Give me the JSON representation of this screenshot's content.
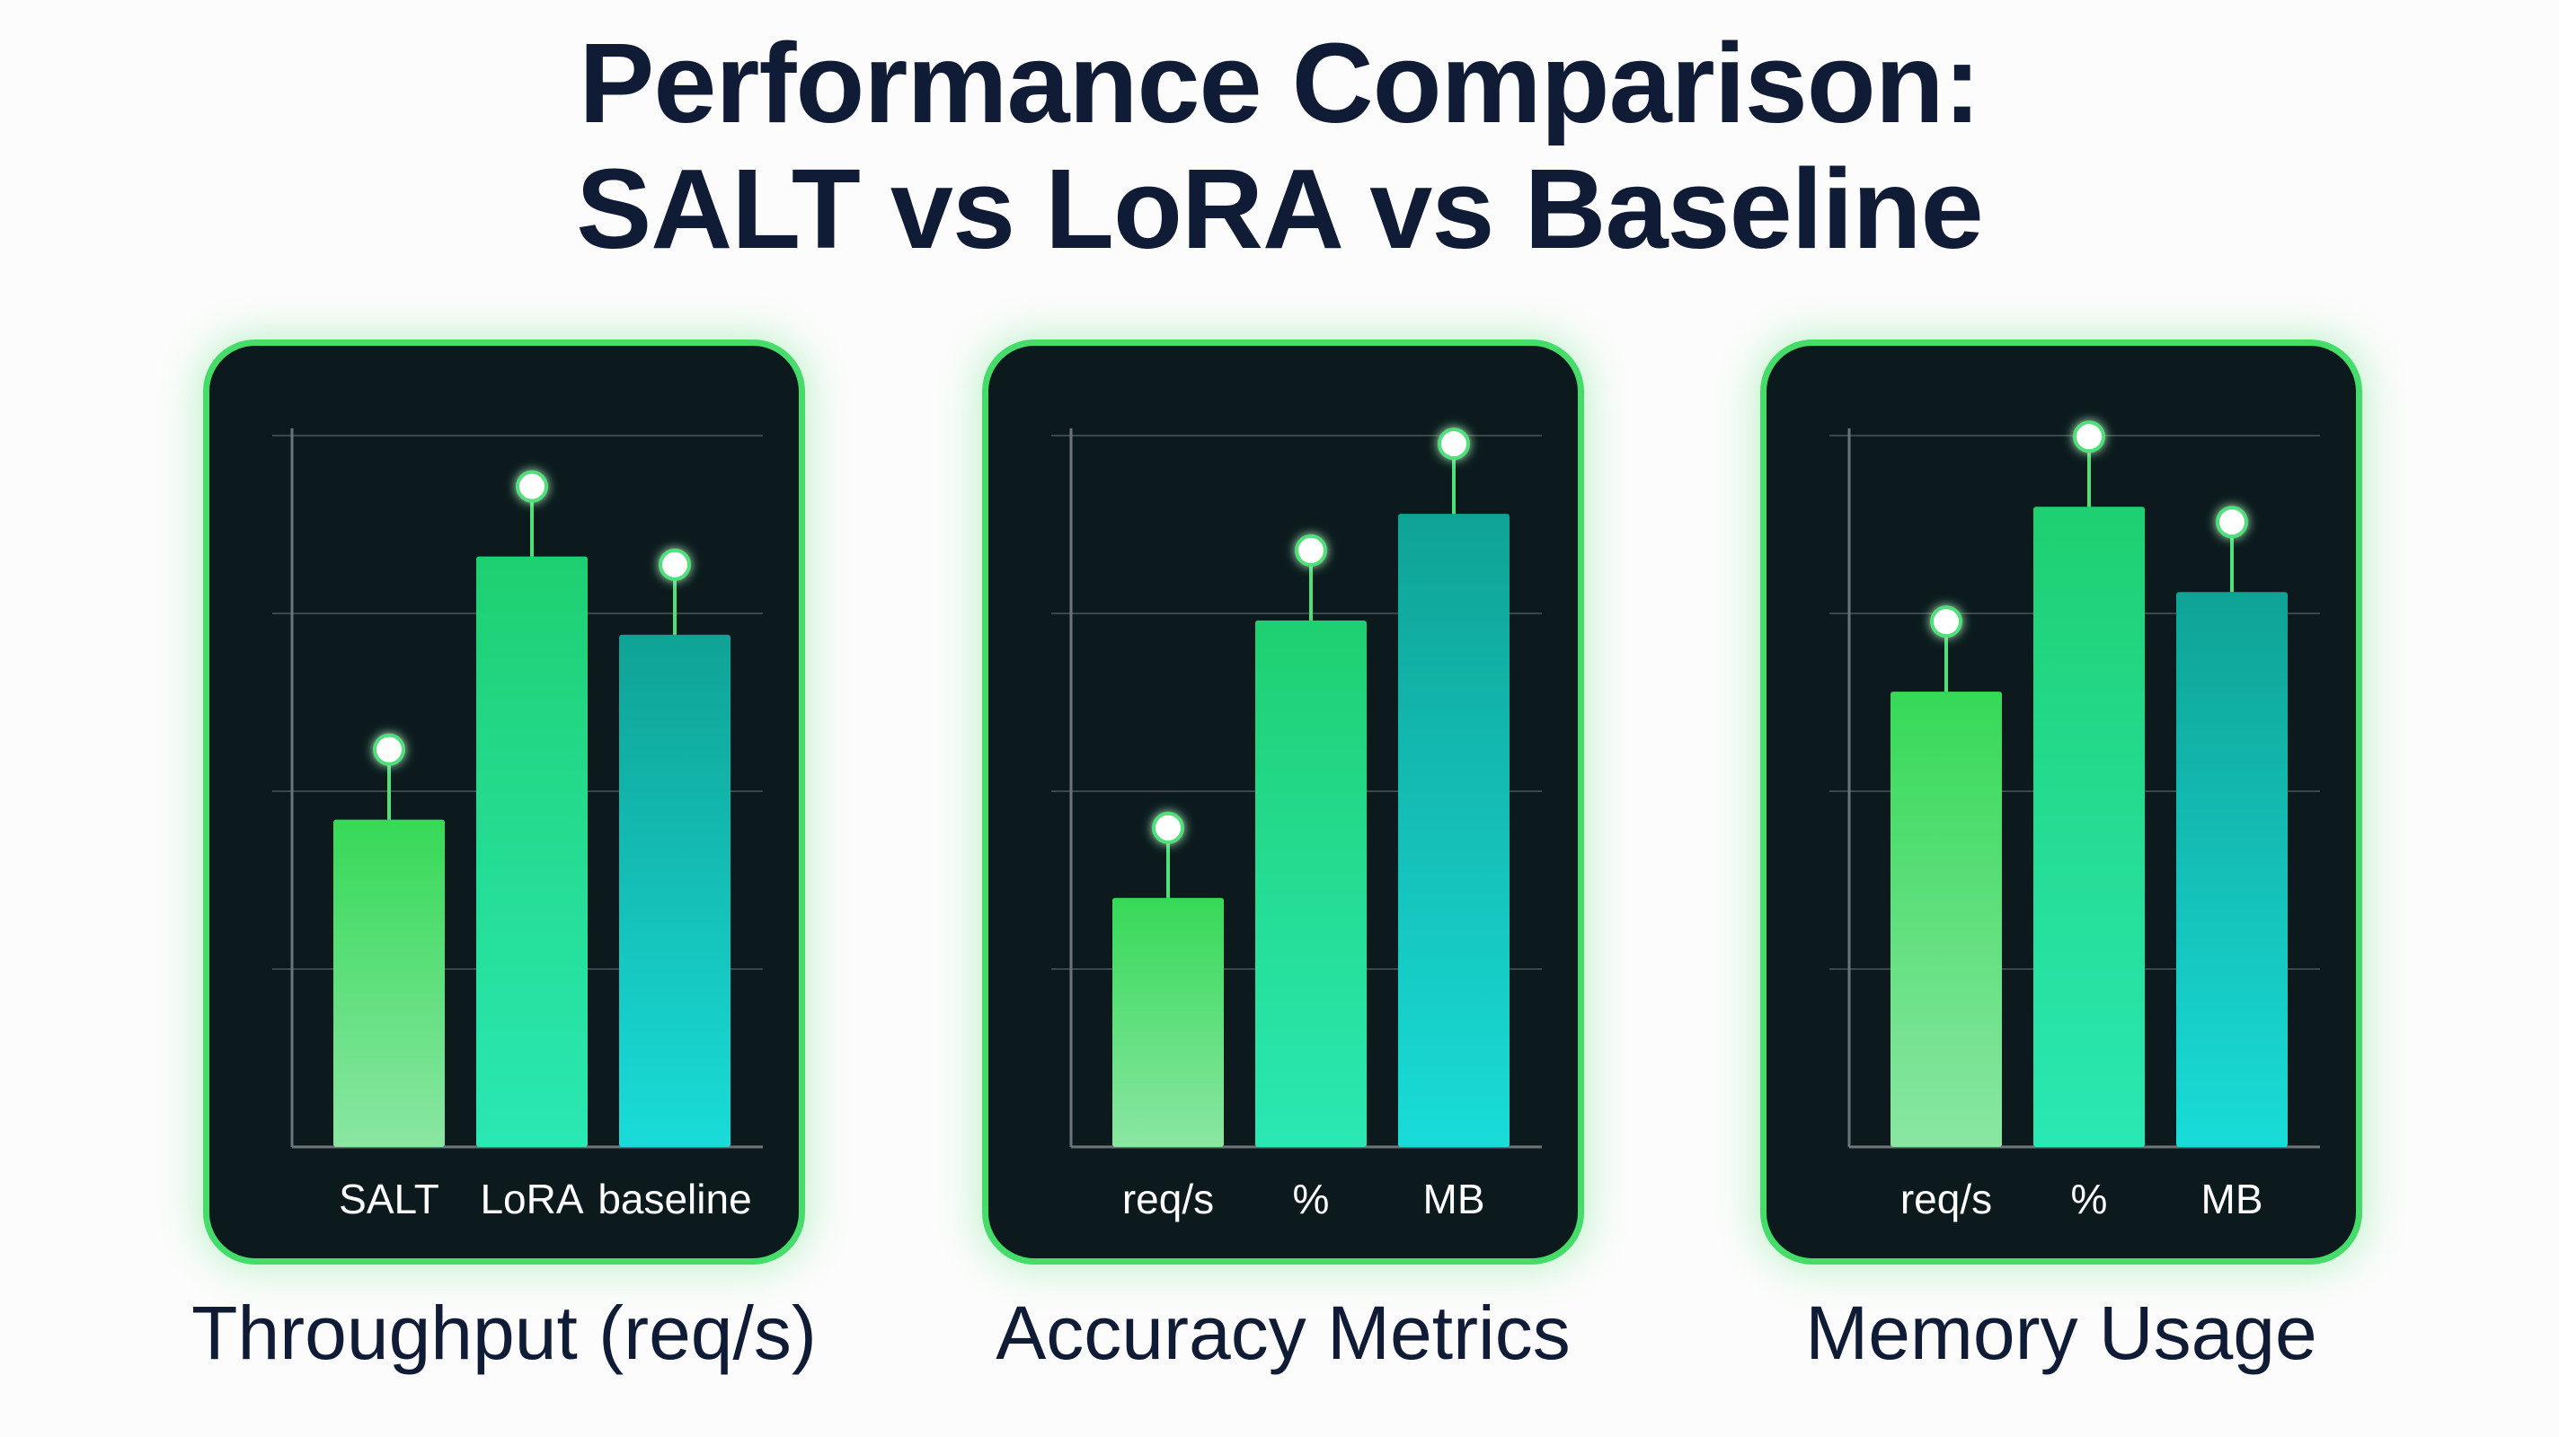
{
  "title_line1": "Performance Comparison:",
  "title_line2": "SALT vs LoRA vs Baseline",
  "colors": {
    "panel_bg": "#0c1a1e",
    "panel_border": "#45dc6a",
    "bar_salt_top": "#36d958",
    "bar_salt_bottom": "#8ae6a2",
    "bar_lora_top": "#1fd071",
    "bar_lora_bottom": "#2ae8b4",
    "bar_baseline_top": "#0fa396",
    "bar_baseline_bottom": "#19dcd8"
  },
  "chart_data": [
    {
      "type": "bar",
      "title": "Throughput (req/s)",
      "categories": [
        "SALT",
        "LoRA",
        "baseline"
      ],
      "values": [
        46,
        83,
        72
      ],
      "ylim": [
        0,
        100
      ],
      "grid": true
    },
    {
      "type": "bar",
      "title": "Accuracy Metrics",
      "categories": [
        "req/s",
        "%",
        "MB"
      ],
      "values": [
        35,
        74,
        89
      ],
      "ylim": [
        0,
        100
      ],
      "grid": true
    },
    {
      "type": "bar",
      "title": "Memory Usage",
      "categories": [
        "req/s",
        "%",
        "MB"
      ],
      "values": [
        64,
        90,
        78
      ],
      "ylim": [
        0,
        100
      ],
      "grid": true
    }
  ]
}
